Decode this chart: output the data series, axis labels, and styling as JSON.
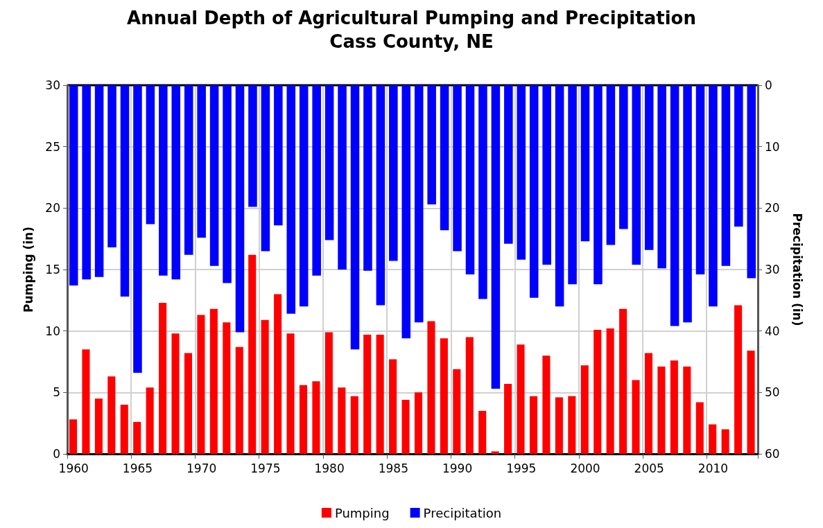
{
  "chart_data": {
    "type": "bar",
    "title": "Annual Depth of Agricultural Pumping and Precipitation",
    "subtitle": "Cass County, NE",
    "ylabel": "Pumping (in)",
    "y2label": "Precipitation (in)",
    "categories": [
      "1960",
      null,
      null,
      null,
      null,
      "1965",
      null,
      null,
      null,
      null,
      "1970",
      null,
      null,
      null,
      null,
      "1975",
      null,
      null,
      null,
      null,
      "1980",
      null,
      null,
      null,
      null,
      "1985",
      null,
      null,
      null,
      null,
      "1990",
      null,
      null,
      null,
      null,
      "1995",
      null,
      null,
      null,
      null,
      "2000",
      null,
      null,
      null,
      null,
      "2005",
      null,
      null,
      null,
      null,
      "2010",
      null,
      null,
      null
    ],
    "series": [
      {
        "name": "Pumping",
        "color": "#ff0000",
        "values": [
          2.8,
          8.5,
          4.5,
          6.3,
          4.0,
          2.6,
          5.4,
          12.3,
          9.8,
          8.2,
          11.3,
          11.8,
          10.7,
          8.7,
          16.2,
          10.9,
          13.0,
          9.8,
          5.6,
          5.9,
          9.9,
          5.4,
          4.7,
          9.7,
          9.7,
          7.7,
          4.4,
          5.0,
          10.8,
          9.4,
          6.9,
          9.5,
          3.5,
          0.2,
          5.7,
          8.9,
          4.7,
          8.0,
          4.6,
          4.7,
          7.2,
          10.1,
          10.2,
          11.8,
          6.0,
          8.2,
          7.1,
          7.6,
          7.1,
          4.2,
          2.4,
          2.0,
          12.1,
          8.4
        ]
      },
      {
        "name": "Precipitation",
        "color": "#0000ff",
        "axis": "y2",
        "values": [
          32.6,
          31.6,
          31.2,
          26.4,
          34.4,
          46.8,
          22.6,
          31.0,
          31.6,
          27.6,
          24.8,
          29.4,
          32.2,
          40.2,
          19.8,
          27.0,
          22.8,
          37.2,
          36.0,
          31.0,
          25.2,
          30.0,
          43.0,
          30.2,
          35.8,
          28.6,
          41.2,
          38.6,
          19.4,
          23.6,
          27.0,
          30.8,
          34.8,
          49.4,
          25.8,
          28.4,
          34.6,
          29.2,
          36.0,
          32.4,
          25.4,
          32.4,
          26.0,
          23.4,
          29.2,
          26.8,
          29.8,
          39.2,
          38.6,
          30.8,
          36.0,
          29.4,
          23.0,
          31.4
        ]
      }
    ],
    "ylim": [
      0,
      30
    ],
    "yticks": [
      0,
      5,
      10,
      15,
      20,
      25,
      30
    ],
    "y2lim": [
      60,
      0
    ],
    "y2ticks": [
      0,
      10,
      20,
      30,
      40,
      50,
      60
    ],
    "grid": true,
    "legend": "bottom"
  }
}
